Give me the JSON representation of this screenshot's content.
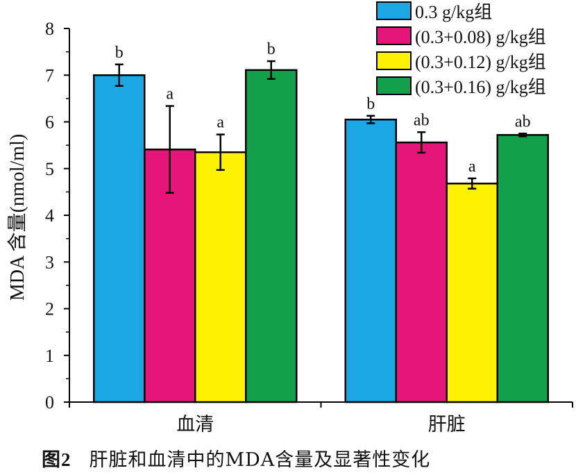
{
  "caption": {
    "figure_label": "图2",
    "text": "肝脏和血清中的MDA含量及显著性变化"
  },
  "chart_data": {
    "type": "bar",
    "title": "",
    "xlabel": "",
    "ylabel": "MDA 含量(nmol/ml)",
    "ylim": [
      0,
      8
    ],
    "yticks": [
      0,
      1,
      2,
      3,
      4,
      5,
      6,
      7,
      8
    ],
    "grid": false,
    "legend_position": "top-right",
    "categories": [
      "血清",
      "肝脏"
    ],
    "series": [
      {
        "name": "0.3 g/kg组",
        "color": "#1aa7e3",
        "values": [
          7.0,
          6.05
        ],
        "errors": [
          0.23,
          0.08
        ],
        "significance": [
          "b",
          "b"
        ]
      },
      {
        "name": "(0.3+0.08) g/kg组",
        "color": "#e5157a",
        "values": [
          5.41,
          5.56
        ],
        "errors": [
          0.93,
          0.22
        ],
        "significance": [
          "a",
          "ab"
        ]
      },
      {
        "name": "(0.3+0.12) g/kg组",
        "color": "#fff200",
        "values": [
          5.35,
          4.68
        ],
        "errors": [
          0.38,
          0.11
        ],
        "significance": [
          "a",
          "a"
        ]
      },
      {
        "name": "(0.3+0.16) g/kg组",
        "color": "#12a04a",
        "values": [
          7.11,
          5.72
        ],
        "errors": [
          0.19,
          0.03
        ],
        "significance": [
          "b",
          "ab"
        ]
      }
    ]
  }
}
